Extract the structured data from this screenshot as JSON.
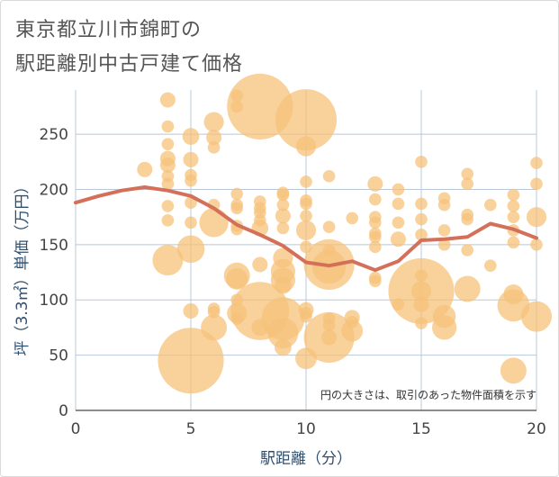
{
  "header": {
    "title_line1": "東京都立川市錦町の",
    "title_line2": "駅距離別中古戸建て価格"
  },
  "chart_data": {
    "type": "scatter",
    "title": "東京都立川市錦町の駅距離別中古戸建て価格",
    "xlabel": "駅距離（分）",
    "ylabel": "坪（3.3㎡）単価（万円）",
    "xlim": [
      0,
      20
    ],
    "ylim": [
      0,
      290
    ],
    "x_ticks": [
      0,
      5,
      10,
      15,
      20
    ],
    "y_ticks": [
      0,
      50,
      100,
      150,
      200,
      250
    ],
    "grid": true,
    "annotation": "円の大きさは、取引のあった物件面積を示す",
    "colors": {
      "bubble": "#f5c27a",
      "line": "#d4705a",
      "grid": "#b8c8da",
      "axis": "#666666"
    },
    "bubbles": [
      {
        "x": 3,
        "y": 218,
        "s": 1
      },
      {
        "x": 4,
        "y": 281,
        "s": 1
      },
      {
        "x": 4,
        "y": 257,
        "s": 0.8
      },
      {
        "x": 4,
        "y": 241,
        "s": 0.8
      },
      {
        "x": 4,
        "y": 228,
        "s": 1
      },
      {
        "x": 4,
        "y": 222,
        "s": 1
      },
      {
        "x": 4,
        "y": 212,
        "s": 0.8
      },
      {
        "x": 4,
        "y": 205,
        "s": 0.8
      },
      {
        "x": 4,
        "y": 185,
        "s": 0.8
      },
      {
        "x": 4,
        "y": 172,
        "s": 0.8
      },
      {
        "x": 4,
        "y": 136,
        "s": 2
      },
      {
        "x": 5,
        "y": 248,
        "s": 1.1
      },
      {
        "x": 5,
        "y": 227,
        "s": 1
      },
      {
        "x": 5,
        "y": 213,
        "s": 0.8
      },
      {
        "x": 5,
        "y": 208,
        "s": 0.8
      },
      {
        "x": 5,
        "y": 188,
        "s": 0.8
      },
      {
        "x": 5,
        "y": 170,
        "s": 0.8
      },
      {
        "x": 5,
        "y": 146,
        "s": 1.8
      },
      {
        "x": 5,
        "y": 90,
        "s": 1
      },
      {
        "x": 5,
        "y": 45,
        "s": 4.3
      },
      {
        "x": 6,
        "y": 261,
        "s": 1.3
      },
      {
        "x": 6,
        "y": 247,
        "s": 1
      },
      {
        "x": 6,
        "y": 238,
        "s": 0.8
      },
      {
        "x": 6,
        "y": 186,
        "s": 0.8
      },
      {
        "x": 6,
        "y": 170,
        "s": 1.9
      },
      {
        "x": 6,
        "y": 92,
        "s": 0.8
      },
      {
        "x": 6,
        "y": 89,
        "s": 0.8
      },
      {
        "x": 6,
        "y": 75,
        "s": 1.7
      },
      {
        "x": 7,
        "y": 285,
        "s": 0.8
      },
      {
        "x": 7,
        "y": 275,
        "s": 0.8
      },
      {
        "x": 7,
        "y": 196,
        "s": 0.8
      },
      {
        "x": 7,
        "y": 186,
        "s": 0.8
      },
      {
        "x": 7,
        "y": 183,
        "s": 0.8
      },
      {
        "x": 7,
        "y": 167,
        "s": 0.8
      },
      {
        "x": 7,
        "y": 164,
        "s": 0.8
      },
      {
        "x": 7,
        "y": 122,
        "s": 1.7
      },
      {
        "x": 7,
        "y": 119,
        "s": 1.4
      },
      {
        "x": 7,
        "y": 100,
        "s": 0.8
      },
      {
        "x": 7,
        "y": 88,
        "s": 1.3
      },
      {
        "x": 7,
        "y": 83,
        "s": 0.8
      },
      {
        "x": 8,
        "y": 275,
        "s": 4.3
      },
      {
        "x": 8,
        "y": 189,
        "s": 0.8
      },
      {
        "x": 8,
        "y": 183,
        "s": 0.8
      },
      {
        "x": 8,
        "y": 179,
        "s": 0.8
      },
      {
        "x": 8,
        "y": 172,
        "s": 0.8
      },
      {
        "x": 8,
        "y": 165,
        "s": 1.1
      },
      {
        "x": 8,
        "y": 132,
        "s": 1
      },
      {
        "x": 8,
        "y": 90,
        "s": 3.8
      },
      {
        "x": 8,
        "y": 75,
        "s": 1.1
      },
      {
        "x": 9,
        "y": 197,
        "s": 0.8
      },
      {
        "x": 9,
        "y": 195,
        "s": 0.8
      },
      {
        "x": 9,
        "y": 186,
        "s": 0.8
      },
      {
        "x": 9,
        "y": 176,
        "s": 1
      },
      {
        "x": 9,
        "y": 165,
        "s": 0.8
      },
      {
        "x": 9,
        "y": 138,
        "s": 1.3
      },
      {
        "x": 9,
        "y": 126,
        "s": 1.6
      },
      {
        "x": 9,
        "y": 118,
        "s": 1.6
      },
      {
        "x": 9,
        "y": 113,
        "s": 1.1
      },
      {
        "x": 9,
        "y": 83,
        "s": 2.8
      },
      {
        "x": 9,
        "y": 70,
        "s": 2
      },
      {
        "x": 9,
        "y": 57,
        "s": 1.1
      },
      {
        "x": 10,
        "y": 263,
        "s": 4
      },
      {
        "x": 10,
        "y": 239,
        "s": 1.3
      },
      {
        "x": 10,
        "y": 207,
        "s": 0.8
      },
      {
        "x": 10,
        "y": 190,
        "s": 0.8
      },
      {
        "x": 10,
        "y": 187,
        "s": 0.8
      },
      {
        "x": 10,
        "y": 176,
        "s": 0.8
      },
      {
        "x": 10,
        "y": 163,
        "s": 1.3
      },
      {
        "x": 10,
        "y": 148,
        "s": 0.8
      },
      {
        "x": 10,
        "y": 91,
        "s": 1
      },
      {
        "x": 10,
        "y": 88,
        "s": 0.8
      },
      {
        "x": 10,
        "y": 85,
        "s": 0.8
      },
      {
        "x": 10,
        "y": 47,
        "s": 1.4
      },
      {
        "x": 11,
        "y": 212,
        "s": 0.8
      },
      {
        "x": 11,
        "y": 166,
        "s": 0.8
      },
      {
        "x": 11,
        "y": 145,
        "s": 0.8
      },
      {
        "x": 11,
        "y": 132,
        "s": 3.3
      },
      {
        "x": 11,
        "y": 130,
        "s": 2.2
      },
      {
        "x": 11,
        "y": 83,
        "s": 0.8
      },
      {
        "x": 11,
        "y": 77,
        "s": 0.8
      },
      {
        "x": 11,
        "y": 66,
        "s": 3.3
      },
      {
        "x": 11,
        "y": 66,
        "s": 1
      },
      {
        "x": 12,
        "y": 174,
        "s": 0.8
      },
      {
        "x": 12,
        "y": 84,
        "s": 1
      },
      {
        "x": 12,
        "y": 80,
        "s": 0.8
      },
      {
        "x": 12,
        "y": 72,
        "s": 1.4
      },
      {
        "x": 13,
        "y": 205,
        "s": 1
      },
      {
        "x": 13,
        "y": 191,
        "s": 0.8
      },
      {
        "x": 13,
        "y": 175,
        "s": 0.8
      },
      {
        "x": 13,
        "y": 170,
        "s": 0.8
      },
      {
        "x": 13,
        "y": 160,
        "s": 0.8
      },
      {
        "x": 13,
        "y": 157,
        "s": 0.8
      },
      {
        "x": 13,
        "y": 148,
        "s": 0.8
      },
      {
        "x": 13,
        "y": 120,
        "s": 0.8
      },
      {
        "x": 13,
        "y": 117,
        "s": 0.8
      },
      {
        "x": 14,
        "y": 200,
        "s": 0.8
      },
      {
        "x": 14,
        "y": 187,
        "s": 0.8
      },
      {
        "x": 14,
        "y": 170,
        "s": 0.8
      },
      {
        "x": 14,
        "y": 155,
        "s": 1
      },
      {
        "x": 14,
        "y": 96,
        "s": 0.8
      },
      {
        "x": 15,
        "y": 225,
        "s": 0.8
      },
      {
        "x": 15,
        "y": 187,
        "s": 0.8
      },
      {
        "x": 15,
        "y": 173,
        "s": 0.8
      },
      {
        "x": 15,
        "y": 159,
        "s": 0.8
      },
      {
        "x": 15,
        "y": 122,
        "s": 0.8
      },
      {
        "x": 15,
        "y": 108,
        "s": 4.3
      },
      {
        "x": 15,
        "y": 108,
        "s": 1.3
      },
      {
        "x": 15,
        "y": 96,
        "s": 1
      },
      {
        "x": 15,
        "y": 79,
        "s": 0.8
      },
      {
        "x": 16,
        "y": 192,
        "s": 0.8
      },
      {
        "x": 16,
        "y": 186,
        "s": 0.8
      },
      {
        "x": 16,
        "y": 163,
        "s": 0.8
      },
      {
        "x": 16,
        "y": 150,
        "s": 0.8
      },
      {
        "x": 16,
        "y": 85,
        "s": 1.5
      },
      {
        "x": 16,
        "y": 75,
        "s": 1.6
      },
      {
        "x": 17,
        "y": 214,
        "s": 0.8
      },
      {
        "x": 17,
        "y": 205,
        "s": 0.8
      },
      {
        "x": 17,
        "y": 177,
        "s": 0.8
      },
      {
        "x": 17,
        "y": 173,
        "s": 0.8
      },
      {
        "x": 17,
        "y": 145,
        "s": 0.8
      },
      {
        "x": 17,
        "y": 110,
        "s": 1.7
      },
      {
        "x": 18,
        "y": 186,
        "s": 0.8
      },
      {
        "x": 18,
        "y": 131,
        "s": 0.8
      },
      {
        "x": 19,
        "y": 195,
        "s": 0.8
      },
      {
        "x": 19,
        "y": 185,
        "s": 0.8
      },
      {
        "x": 19,
        "y": 175,
        "s": 0.8
      },
      {
        "x": 19,
        "y": 163,
        "s": 0.8
      },
      {
        "x": 19,
        "y": 152,
        "s": 0.8
      },
      {
        "x": 19,
        "y": 105,
        "s": 1.3
      },
      {
        "x": 19,
        "y": 95,
        "s": 2.1
      },
      {
        "x": 19,
        "y": 36,
        "s": 1.7
      },
      {
        "x": 20,
        "y": 224,
        "s": 0.8
      },
      {
        "x": 20,
        "y": 205,
        "s": 0.8
      },
      {
        "x": 20,
        "y": 175,
        "s": 1.3
      },
      {
        "x": 20,
        "y": 150,
        "s": 0.8
      },
      {
        "x": 20,
        "y": 85,
        "s": 2
      }
    ],
    "trend": [
      {
        "x": 0,
        "y": 188
      },
      {
        "x": 1,
        "y": 194
      },
      {
        "x": 2,
        "y": 199
      },
      {
        "x": 3,
        "y": 202
      },
      {
        "x": 4,
        "y": 199
      },
      {
        "x": 5,
        "y": 194
      },
      {
        "x": 6,
        "y": 183
      },
      {
        "x": 7,
        "y": 168
      },
      {
        "x": 8,
        "y": 159
      },
      {
        "x": 9,
        "y": 149
      },
      {
        "x": 10,
        "y": 134
      },
      {
        "x": 11,
        "y": 131
      },
      {
        "x": 12,
        "y": 135
      },
      {
        "x": 13,
        "y": 127
      },
      {
        "x": 14,
        "y": 135
      },
      {
        "x": 15,
        "y": 154
      },
      {
        "x": 16,
        "y": 155
      },
      {
        "x": 17,
        "y": 157
      },
      {
        "x": 18,
        "y": 169
      },
      {
        "x": 19,
        "y": 164
      },
      {
        "x": 20,
        "y": 156
      }
    ]
  }
}
